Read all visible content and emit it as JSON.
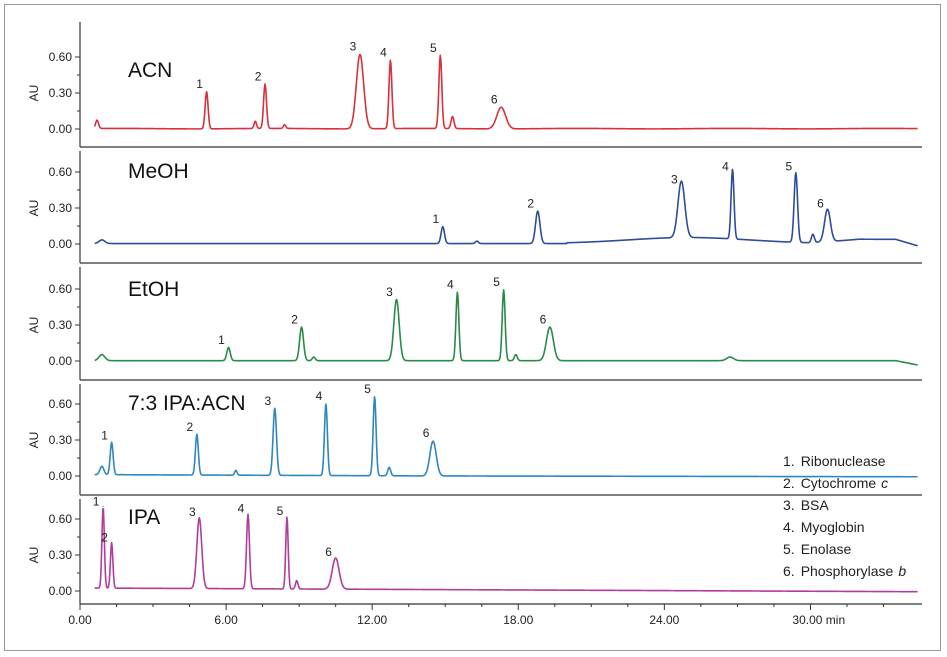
{
  "chart_data": [
    {
      "type": "line",
      "title": "ACN",
      "ylabel": "AU",
      "yticks": [
        "0.00",
        "0.30",
        "0.60"
      ],
      "ylim": [
        0,
        0.72
      ],
      "color": "#d9303a",
      "series": [
        {
          "name": "ACN",
          "x": [
            0.7,
            5.2,
            7.2,
            7.6,
            8.4,
            11.5,
            12.75,
            14.8,
            15.3,
            17.3
          ],
          "values": [
            0.07,
            0.31,
            0.06,
            0.37,
            0.03,
            0.62,
            0.57,
            0.61,
            0.1,
            0.18
          ]
        }
      ],
      "peaks": [
        {
          "label": "1",
          "x": 5.2
        },
        {
          "label": "2",
          "x": 7.6
        },
        {
          "label": "3",
          "x": 11.5
        },
        {
          "label": "4",
          "x": 12.75
        },
        {
          "label": "5",
          "x": 14.8
        },
        {
          "label": "6",
          "x": 17.3
        }
      ]
    },
    {
      "type": "line",
      "title": "MeOH",
      "ylabel": "AU",
      "yticks": [
        "0.00",
        "0.30",
        "0.60"
      ],
      "ylim": [
        0,
        0.72
      ],
      "color": "#2d4c9a",
      "series": [
        {
          "name": "MeOH",
          "x": [
            0.9,
            14.9,
            16.3,
            18.8,
            24.7,
            26.8,
            29.4,
            30.1,
            30.7
          ],
          "values": [
            0.03,
            0.14,
            0.02,
            0.27,
            0.47,
            0.58,
            0.58,
            0.07,
            0.27
          ]
        }
      ],
      "peaks": [
        {
          "label": "1",
          "x": 14.9
        },
        {
          "label": "2",
          "x": 18.8
        },
        {
          "label": "3",
          "x": 24.7
        },
        {
          "label": "4",
          "x": 26.8
        },
        {
          "label": "5",
          "x": 29.4
        },
        {
          "label": "6",
          "x": 30.7
        }
      ]
    },
    {
      "type": "line",
      "title": "EtOH",
      "ylabel": "AU",
      "yticks": [
        "0.00",
        "0.30",
        "0.60"
      ],
      "ylim": [
        0,
        0.72
      ],
      "color": "#2a8a48",
      "series": [
        {
          "name": "EtOH",
          "x": [
            0.9,
            6.1,
            9.1,
            9.6,
            13.0,
            15.5,
            17.4,
            17.9,
            19.3,
            26.7
          ],
          "values": [
            0.05,
            0.11,
            0.28,
            0.03,
            0.51,
            0.57,
            0.59,
            0.05,
            0.28,
            0.03
          ]
        }
      ],
      "peaks": [
        {
          "label": "1",
          "x": 6.1
        },
        {
          "label": "2",
          "x": 9.1
        },
        {
          "label": "3",
          "x": 13.0
        },
        {
          "label": "4",
          "x": 15.5
        },
        {
          "label": "5",
          "x": 17.4
        },
        {
          "label": "6",
          "x": 19.3
        }
      ]
    },
    {
      "type": "line",
      "title": "7:3 IPA:ACN",
      "ylabel": "AU",
      "yticks": [
        "0.00",
        "0.30",
        "0.60"
      ],
      "ylim": [
        0,
        0.72
      ],
      "color": "#2f86c0",
      "series": [
        {
          "name": "7:3 IPA:ACN",
          "x": [
            0.9,
            1.3,
            4.8,
            6.4,
            8.0,
            10.1,
            12.1,
            12.7,
            14.5
          ],
          "values": [
            0.07,
            0.27,
            0.34,
            0.04,
            0.56,
            0.6,
            0.66,
            0.07,
            0.29
          ]
        }
      ],
      "peaks": [
        {
          "label": "1",
          "x": 1.3
        },
        {
          "label": "2",
          "x": 4.8
        },
        {
          "label": "3",
          "x": 8.0
        },
        {
          "label": "4",
          "x": 10.1
        },
        {
          "label": "5",
          "x": 12.1
        },
        {
          "label": "6",
          "x": 14.5
        }
      ]
    },
    {
      "type": "line",
      "title": "IPA",
      "ylabel": "AU",
      "yticks": [
        "0.00",
        "0.30",
        "0.60"
      ],
      "ylim": [
        0,
        0.72
      ],
      "color": "#b03d9b",
      "series": [
        {
          "name": "IPA",
          "x": [
            0.95,
            1.3,
            4.9,
            6.9,
            8.5,
            8.9,
            10.5
          ],
          "values": [
            0.68,
            0.38,
            0.59,
            0.62,
            0.6,
            0.07,
            0.26
          ]
        }
      ],
      "peaks": [
        {
          "label": "1",
          "x": 0.95
        },
        {
          "label": "2",
          "x": 1.3
        },
        {
          "label": "3",
          "x": 4.9
        },
        {
          "label": "4",
          "x": 6.9
        },
        {
          "label": "5",
          "x": 8.5
        },
        {
          "label": "6",
          "x": 10.5
        }
      ]
    }
  ],
  "x_axis": {
    "ticks": [
      {
        "value": 0,
        "label": "0.00"
      },
      {
        "value": 6,
        "label": "6.00"
      },
      {
        "value": 12,
        "label": "12.00"
      },
      {
        "value": 18,
        "label": "18.00"
      },
      {
        "value": 24,
        "label": "24.00"
      },
      {
        "value": 30,
        "label": "30.00 min"
      }
    ],
    "xlim": [
      0,
      34.5
    ]
  },
  "legend": {
    "items": [
      {
        "number": "1.",
        "name": "Ribonuclease",
        "italic": ""
      },
      {
        "number": "2.",
        "name": "Cytochrome",
        "italic": "c"
      },
      {
        "number": "3.",
        "name": "BSA",
        "italic": ""
      },
      {
        "number": "4.",
        "name": "Myoglobin",
        "italic": ""
      },
      {
        "number": "5.",
        "name": "Enolase",
        "italic": ""
      },
      {
        "number": "6.",
        "name": "Phosphorylase",
        "italic": "b"
      }
    ]
  }
}
